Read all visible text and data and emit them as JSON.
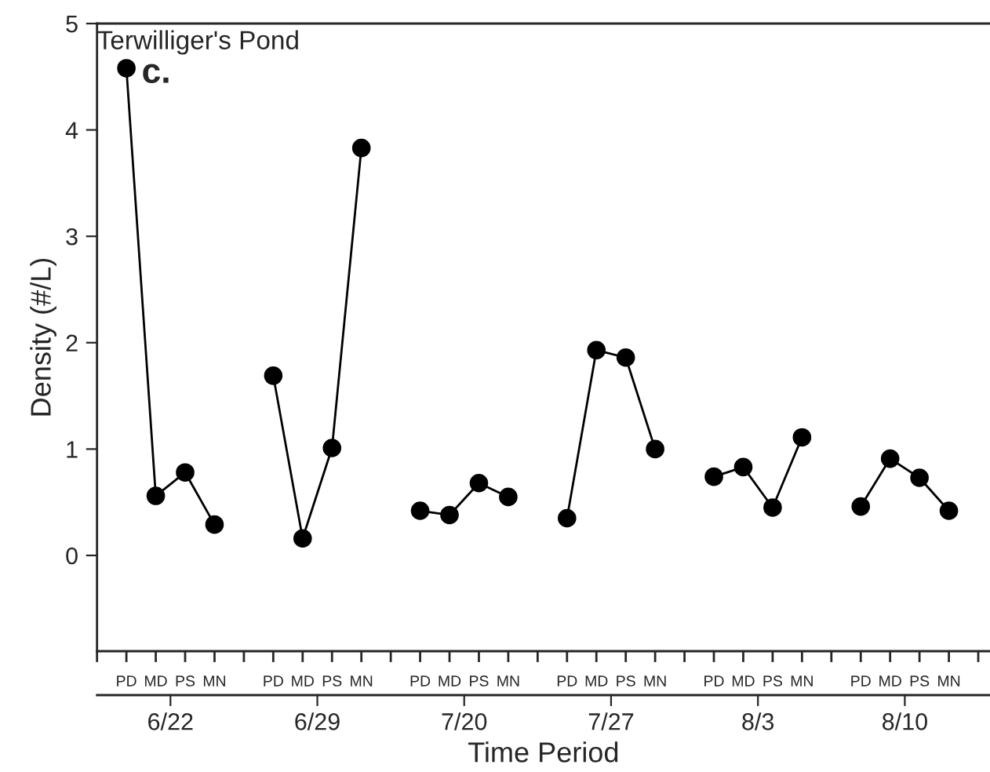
{
  "chart_data": {
    "type": "line",
    "title": "Terwilliger's Pond",
    "xlabel": "Time Period",
    "ylabel": "Density (#/L)",
    "categories": [
      null,
      "PD",
      "MD",
      "PS",
      "MN",
      null,
      "PD",
      "MD",
      "PS",
      "MN",
      null,
      "PD",
      "MD",
      "PS",
      "MN",
      null,
      "PD",
      "MD",
      "PS",
      "MN",
      null,
      "PD",
      "MD",
      "PS",
      "MN",
      null,
      "PD",
      "MD",
      "PS",
      "MN",
      null
    ],
    "series": [
      {
        "color": "#000000",
        "values": [
          null,
          4.58,
          0.56,
          0.78,
          0.29,
          null,
          1.69,
          0.16,
          1.01,
          3.83,
          null,
          0.42,
          0.38,
          0.68,
          0.55,
          null,
          0.35,
          1.93,
          1.86,
          1.0,
          null,
          0.74,
          0.83,
          0.45,
          1.11,
          null,
          0.46,
          0.91,
          0.73,
          0.42,
          null
        ]
      }
    ],
    "annotations": [
      "c.",
      "6/22",
      "6/29",
      "7/20",
      "7/27",
      "8/3",
      "8/10"
    ],
    "ylim": [
      -0.9,
      5
    ],
    "yticks": [
      0,
      1,
      2,
      3,
      4,
      5
    ],
    "marker": "circle",
    "line_style": "solid",
    "grid": false,
    "legend": false
  }
}
